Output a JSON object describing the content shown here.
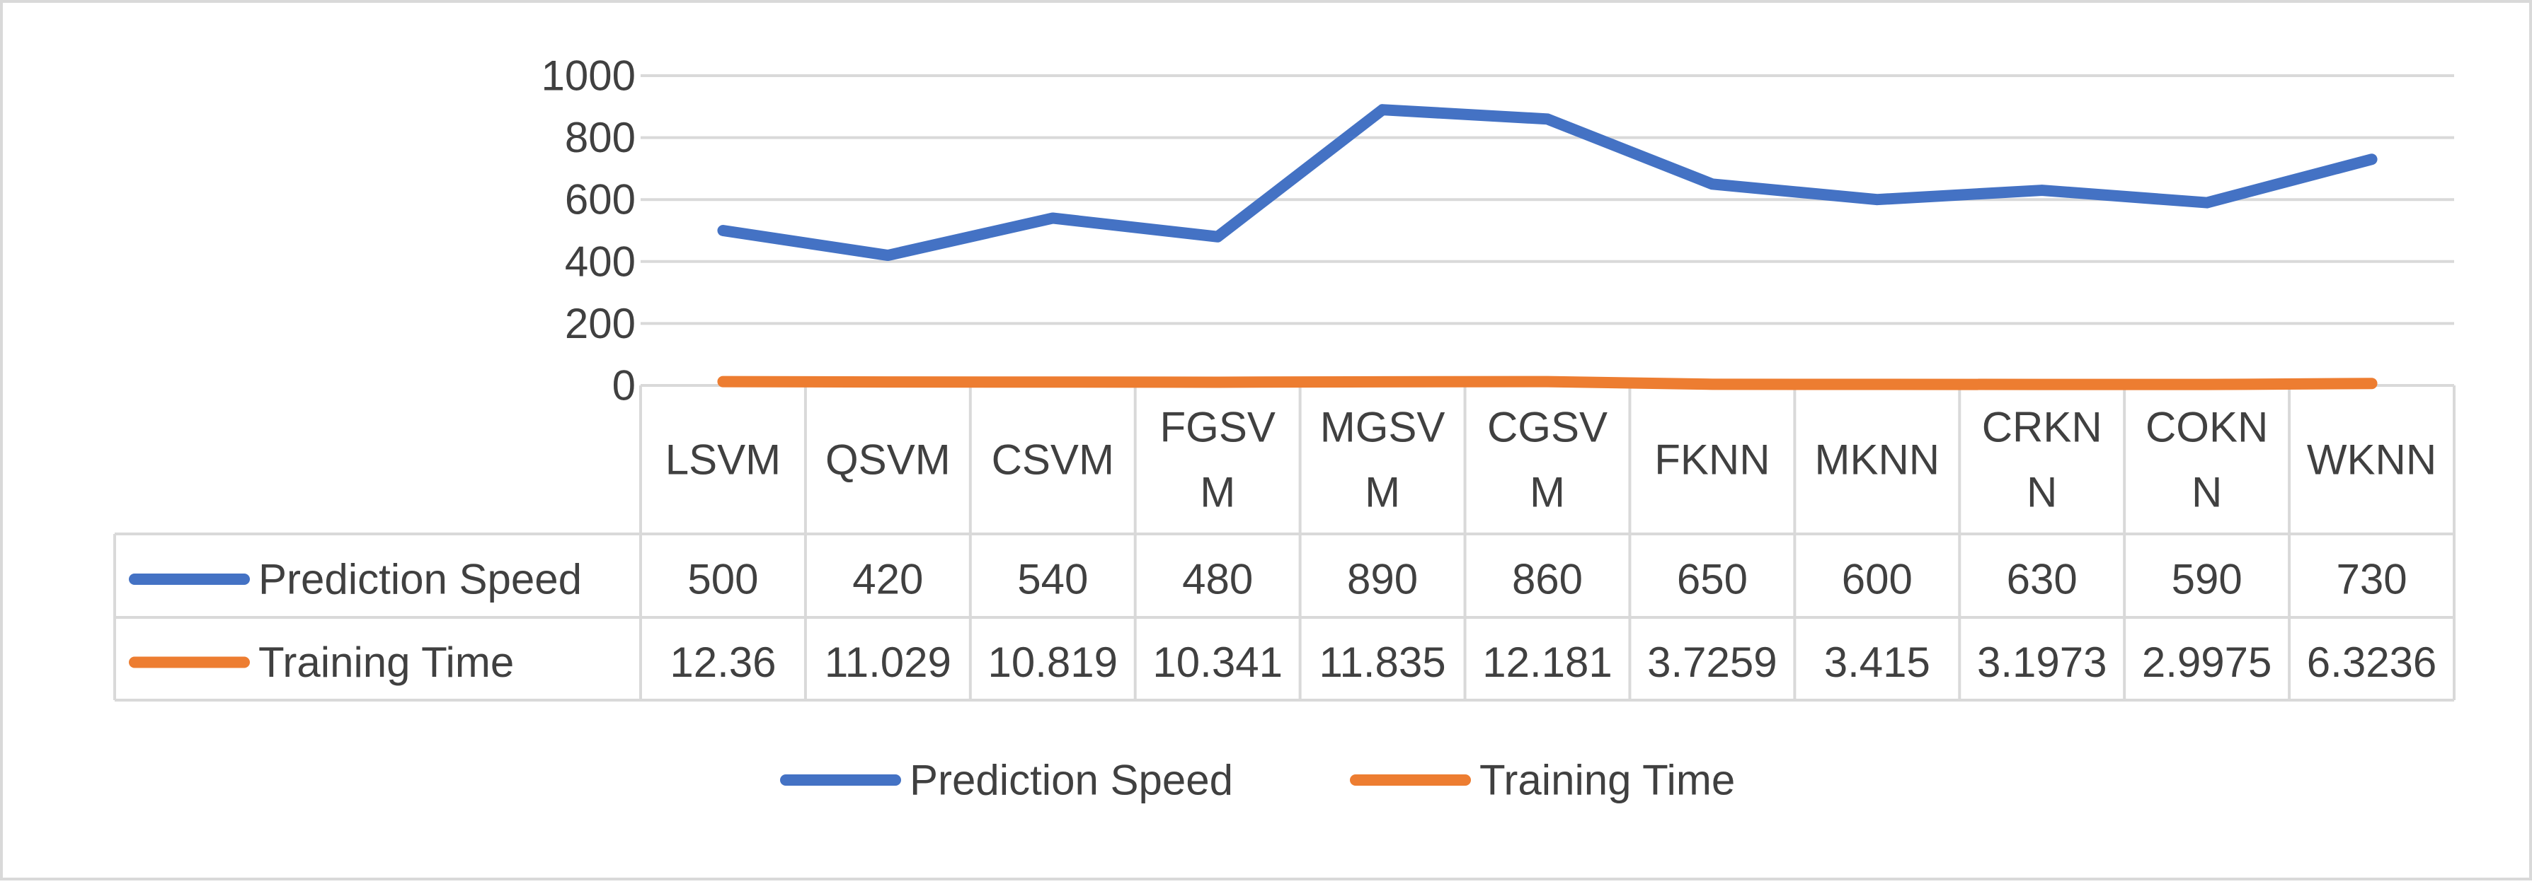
{
  "chart_data": {
    "type": "line",
    "title": "",
    "xlabel": "",
    "ylabel": "",
    "ylim": [
      0,
      1000
    ],
    "yticks": [
      0,
      200,
      400,
      600,
      800,
      1000
    ],
    "grid": true,
    "legend_position": "bottom",
    "data_table": true,
    "categories": [
      "LSVM",
      "QSVM",
      "CSVM",
      "FGSVM",
      "MGSVM",
      "CGSVM",
      "FKNN",
      "MKNN",
      "CRKNN",
      "COKNN",
      "WKNN"
    ],
    "category_lines": [
      [
        "LSVM"
      ],
      [
        "QSVM"
      ],
      [
        "CSVM"
      ],
      [
        "FGSV",
        "M"
      ],
      [
        "MGSV",
        "M"
      ],
      [
        "CGSV",
        "M"
      ],
      [
        "FKNN"
      ],
      [
        "MKNN"
      ],
      [
        "CRKN",
        "N"
      ],
      [
        "COKN",
        "N"
      ],
      [
        "WKNN"
      ]
    ],
    "series": [
      {
        "name": "Prediction Speed",
        "color": "#4472C4",
        "values": [
          500,
          420,
          540,
          480,
          890,
          860,
          650,
          600,
          630,
          590,
          730
        ],
        "labels": [
          "500",
          "420",
          "540",
          "480",
          "890",
          "860",
          "650",
          "600",
          "630",
          "590",
          "730"
        ]
      },
      {
        "name": "Training Time",
        "color": "#ED7D31",
        "values": [
          12.36,
          11.029,
          10.819,
          10.341,
          11.835,
          12.181,
          3.7259,
          3.415,
          3.1973,
          2.9975,
          6.3236
        ],
        "labels": [
          "12.36",
          "11.029",
          "10.819",
          "10.341",
          "11.835",
          "12.181",
          "3.7259",
          "3.415",
          "3.1973",
          "2.9975",
          "6.3236"
        ]
      }
    ]
  }
}
